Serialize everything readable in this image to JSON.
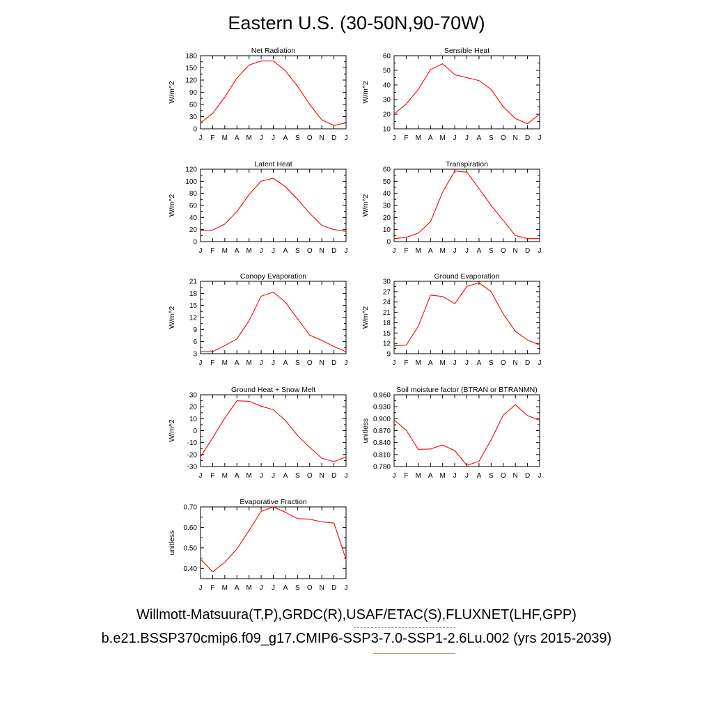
{
  "title": "Eastern U.S. (30-50N,90-70W)",
  "footer": {
    "line1": "Willmott-Matsuura(T,P),GRDC(R),USAF/ETAC(S),FLUXNET(LHF,GPP)",
    "line2": "b.e21.BSSP370cmip6.f09_g17.CMIP6-SSP3-7.0-SSP1-2.6Lu.002 (yrs 2015-2039)"
  },
  "colors": {
    "series": "#ff0000",
    "legend_dash": "#7070e0",
    "legend_solid": "#f08080"
  },
  "chart_data": [
    {
      "type": "line",
      "title": "Net Radiation",
      "ylabel": "W/m^2",
      "categories": [
        "J",
        "F",
        "M",
        "A",
        "M",
        "J",
        "J",
        "A",
        "S",
        "O",
        "N",
        "D",
        "J"
      ],
      "ylim": [
        0,
        180
      ],
      "yticks": [
        "0",
        "30",
        "60",
        "90",
        "120",
        "150",
        "180"
      ],
      "values": [
        15,
        38,
        78,
        125,
        157,
        167,
        167,
        143,
        105,
        60,
        22,
        8,
        15
      ]
    },
    {
      "type": "line",
      "title": "Sensible Heat",
      "ylabel": "W/m^2",
      "categories": [
        "J",
        "F",
        "M",
        "A",
        "M",
        "J",
        "J",
        "A",
        "S",
        "O",
        "N",
        "D",
        "J"
      ],
      "ylim": [
        10,
        60
      ],
      "yticks": [
        "10",
        "20",
        "30",
        "40",
        "50",
        "60"
      ],
      "values": [
        20,
        27,
        37,
        50.5,
        54.5,
        47,
        45,
        43,
        37,
        25,
        17,
        13.5,
        20
      ]
    },
    {
      "type": "line",
      "title": "Latent Heat",
      "ylabel": "W/m^2",
      "categories": [
        "J",
        "F",
        "M",
        "A",
        "M",
        "J",
        "J",
        "A",
        "S",
        "O",
        "N",
        "D",
        "J"
      ],
      "ylim": [
        0,
        120
      ],
      "yticks": [
        "0",
        "20",
        "40",
        "60",
        "80",
        "100",
        "120"
      ],
      "values": [
        18,
        19,
        29,
        50,
        78,
        100,
        105,
        91,
        70,
        47,
        27,
        20,
        17
      ]
    },
    {
      "type": "line",
      "title": "Transpiration",
      "ylabel": "W/m^2",
      "categories": [
        "J",
        "F",
        "M",
        "A",
        "M",
        "J",
        "J",
        "A",
        "S",
        "O",
        "N",
        "D",
        "J"
      ],
      "ylim": [
        0,
        60
      ],
      "yticks": [
        "0",
        "10",
        "20",
        "30",
        "40",
        "50",
        "60"
      ],
      "values": [
        2.5,
        3.5,
        7,
        16.5,
        41,
        58.5,
        57.5,
        44,
        30,
        17.5,
        5,
        2.5,
        2.5
      ]
    },
    {
      "type": "line",
      "title": "Canopy Evaporation",
      "ylabel": "W/m^2",
      "categories": [
        "J",
        "F",
        "M",
        "A",
        "M",
        "J",
        "J",
        "A",
        "S",
        "O",
        "N",
        "D",
        "J"
      ],
      "ylim": [
        3,
        21
      ],
      "yticks": [
        "3",
        "6",
        "9",
        "12",
        "15",
        "18",
        "21"
      ],
      "values": [
        3.5,
        3.5,
        5,
        6.7,
        11.2,
        17.3,
        18.3,
        15.8,
        11.7,
        7.6,
        6.3,
        4.8,
        3.5
      ]
    },
    {
      "type": "line",
      "title": "Ground Evaporation",
      "ylabel": "W/m^2",
      "categories": [
        "J",
        "F",
        "M",
        "A",
        "M",
        "J",
        "J",
        "A",
        "S",
        "O",
        "N",
        "D",
        "J"
      ],
      "ylim": [
        9,
        30
      ],
      "yticks": [
        "9",
        "12",
        "15",
        "18",
        "21",
        "24",
        "27",
        "30"
      ],
      "values": [
        11.3,
        11.5,
        17,
        26,
        25.6,
        23.5,
        28.5,
        29.6,
        27,
        20.5,
        15.5,
        13,
        11.5
      ]
    },
    {
      "type": "line",
      "title": "Ground Heat + Snow Melt",
      "ylabel": "W/m^2",
      "categories": [
        "J",
        "F",
        "M",
        "A",
        "M",
        "J",
        "J",
        "A",
        "S",
        "O",
        "N",
        "D",
        "J"
      ],
      "ylim": [
        -30,
        30
      ],
      "yticks": [
        "-30",
        "-20",
        "-10",
        "0",
        "10",
        "20",
        "30"
      ],
      "values": [
        -22,
        -6,
        10.5,
        25,
        24.5,
        20.5,
        17.5,
        8.5,
        -4,
        -14,
        -23,
        -26,
        -22
      ]
    },
    {
      "type": "line",
      "title": "Soil moisture factor (BTRAN or BTRANMN)",
      "ylabel": "unitless",
      "categories": [
        "J",
        "F",
        "M",
        "A",
        "M",
        "J",
        "J",
        "A",
        "S",
        "O",
        "N",
        "D",
        "J"
      ],
      "ylim": [
        0.78,
        0.96
      ],
      "yticks": [
        "0.780",
        "0.810",
        "0.840",
        "0.870",
        "0.900",
        "0.930",
        "0.960"
      ],
      "values": [
        0.897,
        0.871,
        0.823,
        0.824,
        0.834,
        0.82,
        0.783,
        0.793,
        0.847,
        0.909,
        0.935,
        0.908,
        0.896
      ]
    },
    {
      "type": "line",
      "title": "Evaporative Fraction",
      "ylabel": "unitless",
      "categories": [
        "J",
        "F",
        "M",
        "A",
        "M",
        "J",
        "J",
        "A",
        "S",
        "O",
        "N",
        "D",
        "J"
      ],
      "ylim": [
        0.35,
        0.7
      ],
      "yticks": [
        "0.40",
        "0.50",
        "0.60",
        "0.70"
      ],
      "ytick_values": [
        0.4,
        0.5,
        0.6,
        0.7
      ],
      "values": [
        0.445,
        0.383,
        0.43,
        0.495,
        0.585,
        0.678,
        0.7,
        0.674,
        0.643,
        0.64,
        0.627,
        0.621,
        0.443
      ]
    }
  ]
}
